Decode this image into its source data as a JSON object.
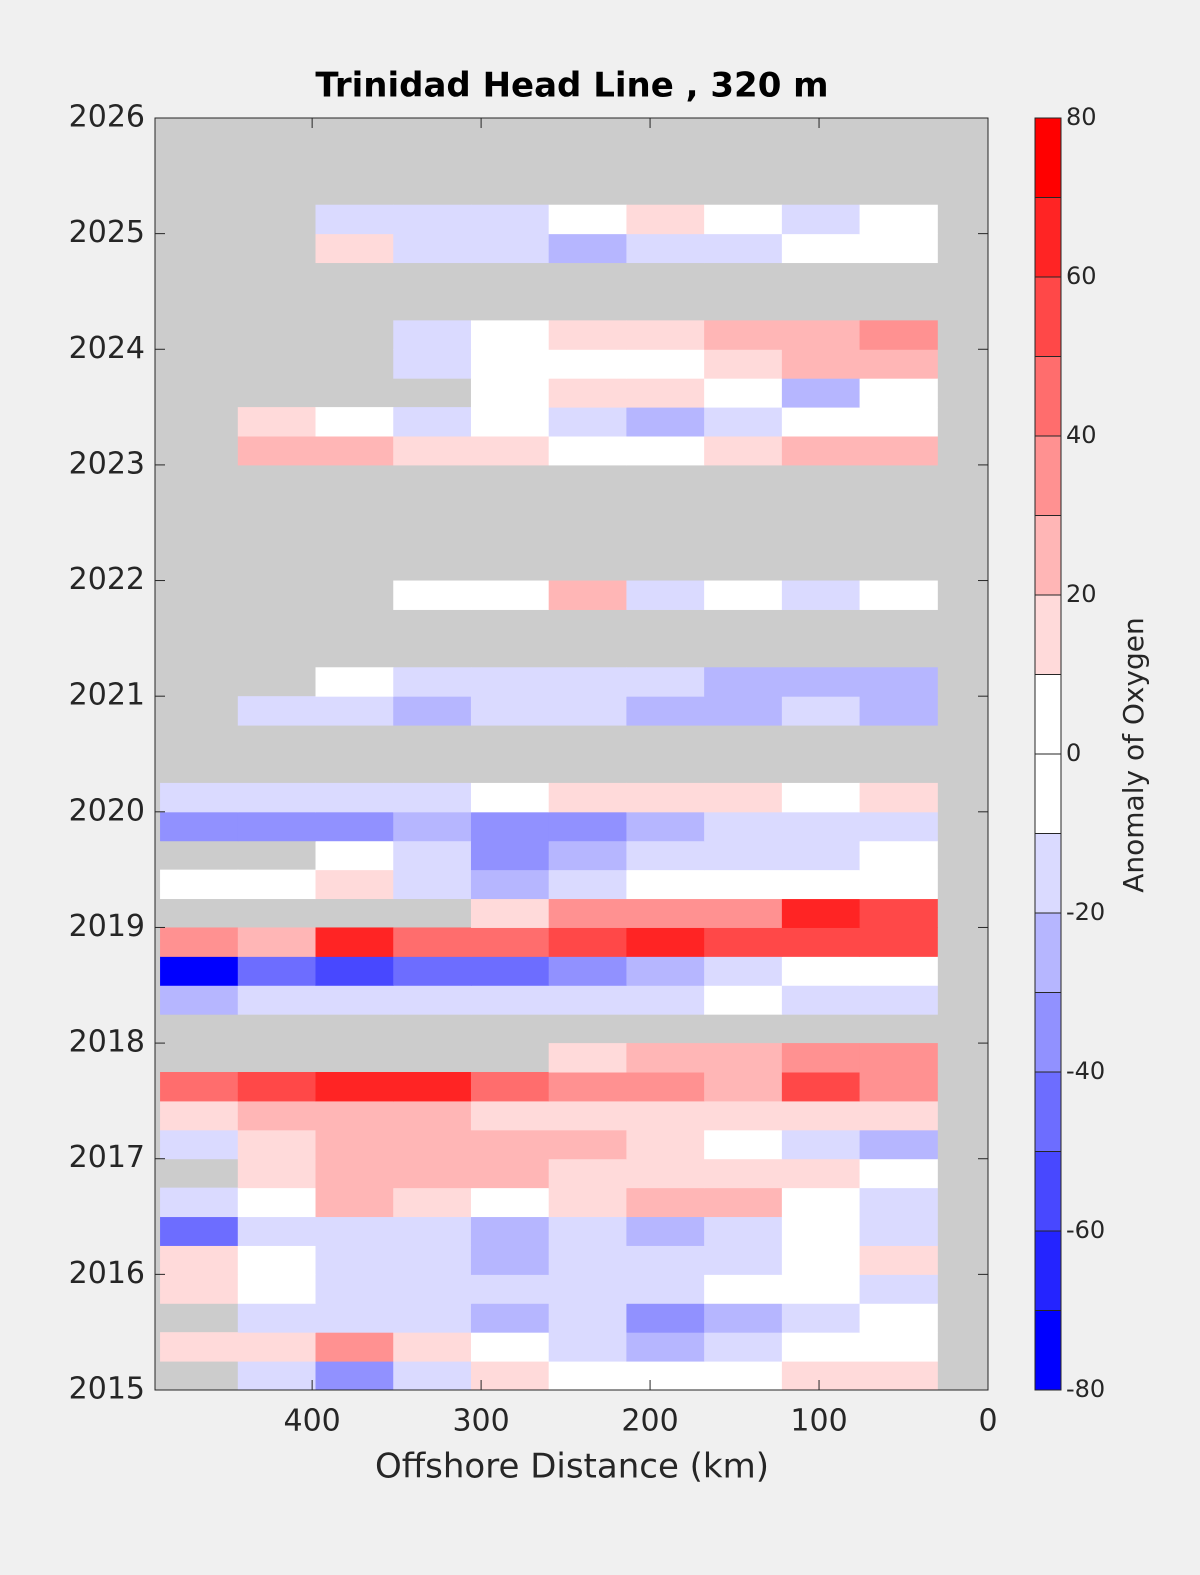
{
  "chart_data": {
    "type": "heatmap",
    "title": "Trinidad Head Line , 320 m",
    "x_label": "Offshore Distance (km)",
    "colorbar_label": "Anomaly of Oxygen",
    "xlim": [
      493,
      0
    ],
    "xticks": [
      400,
      300,
      200,
      100,
      0
    ],
    "ylim": [
      2015,
      2026
    ],
    "yticks": [
      2015,
      2016,
      2017,
      2018,
      2019,
      2020,
      2021,
      2022,
      2023,
      2024,
      2025,
      2026
    ],
    "clim": [
      -80,
      80
    ],
    "cticks": [
      -80,
      -60,
      -40,
      -20,
      0,
      20,
      40,
      60,
      80
    ],
    "levels": [
      -80,
      -70,
      -60,
      -50,
      -40,
      -30,
      -20,
      -10,
      0,
      10,
      20,
      30,
      40,
      50,
      60,
      70,
      80
    ],
    "colors": [
      "#0000ff",
      "#2424ff",
      "#4848ff",
      "#6d6dff",
      "#9191ff",
      "#b6b6ff",
      "#dadaff",
      "#ffffff",
      "#ffffff",
      "#ffdada",
      "#ffb6b6",
      "#ff9191",
      "#ff6d6d",
      "#ff4848",
      "#ff2424",
      "#ff0000"
    ],
    "missing_color": "#cccccc",
    "x": [
      467,
      421,
      375,
      329,
      283,
      237,
      191,
      145,
      99,
      53
    ],
    "y": [
      2015.125,
      2015.375,
      2015.625,
      2015.875,
      2016.125,
      2016.375,
      2016.625,
      2016.875,
      2017.125,
      2017.375,
      2017.625,
      2017.875,
      2018.125,
      2018.375,
      2018.625,
      2018.875,
      2019.125,
      2019.375,
      2019.625,
      2019.875,
      2020.125,
      2020.375,
      2020.625,
      2020.875,
      2021.125,
      2021.375,
      2021.625,
      2021.875,
      2022.125,
      2022.375,
      2022.625,
      2022.875,
      2023.125,
      2023.375,
      2023.625,
      2023.875,
      2024.125,
      2024.375,
      2024.625,
      2024.875,
      2025.125
    ],
    "z": [
      [
        null,
        -15,
        -35,
        -15,
        15,
        0,
        0,
        0,
        15,
        15
      ],
      [
        15,
        15,
        35,
        15,
        0,
        -15,
        -25,
        -15,
        0,
        0
      ],
      [
        null,
        -15,
        -15,
        -15,
        -25,
        -15,
        -35,
        -25,
        -15,
        0
      ],
      [
        15,
        0,
        -15,
        -15,
        -15,
        -15,
        -15,
        0,
        0,
        -15
      ],
      [
        15,
        0,
        -15,
        -15,
        -25,
        -15,
        -15,
        -15,
        0,
        15
      ],
      [
        -45,
        -15,
        -15,
        -15,
        -25,
        -15,
        -25,
        -15,
        0,
        -15
      ],
      [
        -15,
        0,
        25,
        15,
        0,
        15,
        25,
        25,
        0,
        -15
      ],
      [
        null,
        15,
        25,
        25,
        25,
        15,
        15,
        15,
        15,
        0
      ],
      [
        -15,
        15,
        25,
        25,
        25,
        25,
        15,
        0,
        -15,
        -25
      ],
      [
        15,
        25,
        25,
        25,
        15,
        15,
        15,
        15,
        15,
        15
      ],
      [
        45,
        55,
        65,
        65,
        45,
        35,
        35,
        25,
        55,
        35
      ],
      [
        null,
        null,
        null,
        null,
        null,
        15,
        25,
        25,
        35,
        35
      ],
      [
        null,
        null,
        null,
        null,
        null,
        null,
        null,
        null,
        null,
        null
      ],
      [
        -25,
        -15,
        -15,
        -15,
        -15,
        -15,
        -15,
        0,
        -15,
        -15
      ],
      [
        -75,
        -45,
        -55,
        -45,
        -45,
        -35,
        -25,
        -15,
        0,
        0
      ],
      [
        35,
        25,
        65,
        45,
        45,
        55,
        65,
        55,
        55,
        55
      ],
      [
        null,
        null,
        null,
        null,
        15,
        35,
        35,
        35,
        65,
        55
      ],
      [
        0,
        0,
        15,
        -15,
        -25,
        -15,
        0,
        0,
        0,
        0
      ],
      [
        null,
        null,
        0,
        -15,
        -35,
        -25,
        -15,
        -15,
        -15,
        0
      ],
      [
        -35,
        -35,
        -35,
        -25,
        -35,
        -35,
        -25,
        -15,
        -15,
        -15
      ],
      [
        -15,
        -15,
        -15,
        -15,
        0,
        15,
        15,
        15,
        0,
        15
      ],
      [
        null,
        null,
        null,
        null,
        null,
        null,
        null,
        null,
        null,
        null
      ],
      [
        null,
        null,
        null,
        null,
        null,
        null,
        null,
        null,
        null,
        null
      ],
      [
        null,
        -15,
        -15,
        -25,
        -15,
        -15,
        -25,
        -25,
        -15,
        -25
      ],
      [
        null,
        null,
        0,
        -15,
        -15,
        -15,
        -15,
        -25,
        -25,
        -25
      ],
      [
        null,
        null,
        null,
        null,
        null,
        null,
        null,
        null,
        null,
        null
      ],
      [
        null,
        null,
        null,
        null,
        null,
        null,
        null,
        null,
        null,
        null
      ],
      [
        null,
        null,
        null,
        0,
        0,
        25,
        -15,
        0,
        -15,
        0
      ],
      [
        null,
        null,
        null,
        null,
        null,
        null,
        null,
        null,
        null,
        null
      ],
      [
        null,
        null,
        null,
        null,
        null,
        null,
        null,
        null,
        null,
        null
      ],
      [
        null,
        null,
        null,
        null,
        null,
        null,
        null,
        null,
        null,
        null
      ],
      [
        null,
        null,
        null,
        null,
        null,
        null,
        null,
        null,
        null,
        null
      ],
      [
        null,
        25,
        25,
        15,
        15,
        0,
        0,
        15,
        25,
        25
      ],
      [
        null,
        15,
        0,
        -15,
        0,
        -15,
        -25,
        -15,
        0,
        0
      ],
      [
        null,
        null,
        null,
        null,
        0,
        15,
        15,
        0,
        -25,
        0
      ],
      [
        null,
        null,
        null,
        -15,
        0,
        0,
        0,
        15,
        25,
        25
      ],
      [
        null,
        null,
        null,
        -15,
        0,
        15,
        15,
        25,
        25,
        35
      ],
      [
        null,
        null,
        null,
        null,
        null,
        null,
        null,
        null,
        null,
        null
      ],
      [
        null,
        null,
        null,
        null,
        null,
        null,
        null,
        null,
        null,
        null
      ],
      [
        null,
        null,
        15,
        -15,
        -15,
        -25,
        -15,
        -15,
        0,
        0
      ],
      [
        null,
        null,
        -15,
        -15,
        -15,
        0,
        15,
        0,
        -15,
        0
      ]
    ]
  }
}
